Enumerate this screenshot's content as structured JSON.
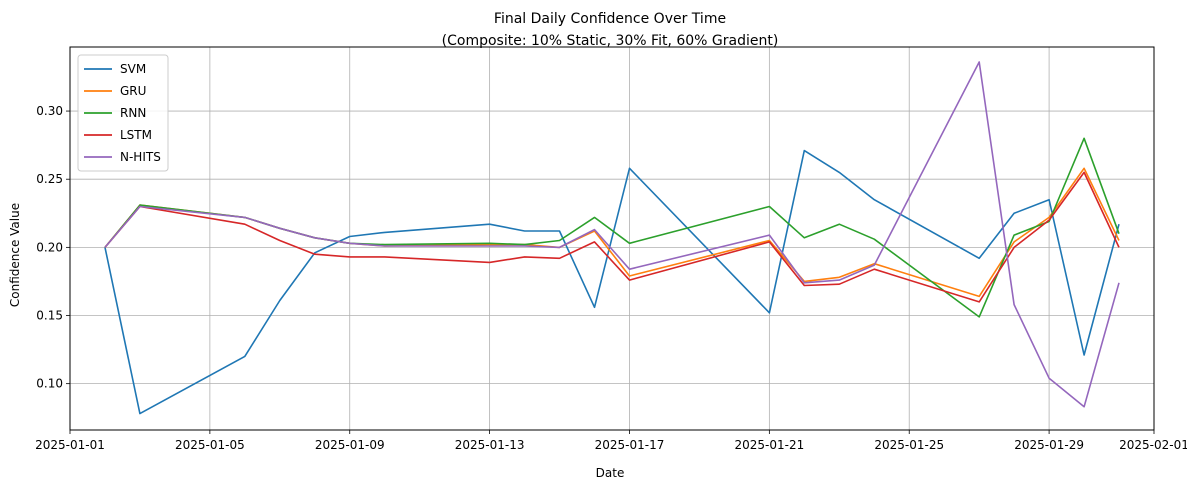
{
  "chart_data": {
    "type": "line",
    "title": "Final Daily Confidence Over Time",
    "subtitle": "(Composite: 10% Static, 30% Fit, 60% Gradient)",
    "xlabel": "Date",
    "ylabel": "Confidence Value",
    "x_ticks": [
      "2025-01-01",
      "2025-01-05",
      "2025-01-09",
      "2025-01-13",
      "2025-01-17",
      "2025-01-21",
      "2025-01-25",
      "2025-01-29",
      "2025-02-01"
    ],
    "y_ticks": [
      "0.10",
      "0.15",
      "0.20",
      "0.25",
      "0.30"
    ],
    "xlim": [
      "2025-01-01",
      "2025-02-01"
    ],
    "ylim": [
      0.066,
      0.347
    ],
    "grid": true,
    "legend_position": "top-left",
    "x": [
      "2025-01-02",
      "2025-01-03",
      "2025-01-06",
      "2025-01-07",
      "2025-01-08",
      "2025-01-09",
      "2025-01-10",
      "2025-01-13",
      "2025-01-14",
      "2025-01-15",
      "2025-01-16",
      "2025-01-17",
      "2025-01-21",
      "2025-01-22",
      "2025-01-23",
      "2025-01-24",
      "2025-01-27",
      "2025-01-28",
      "2025-01-29",
      "2025-01-30",
      "2025-01-31"
    ],
    "series": [
      {
        "name": "SVM",
        "color": "#1f77b4",
        "values": [
          0.2,
          0.078,
          0.12,
          0.161,
          0.196,
          0.208,
          0.211,
          0.217,
          0.212,
          0.212,
          0.156,
          0.258,
          0.152,
          0.271,
          0.255,
          0.235,
          0.192,
          0.225,
          0.235,
          0.121,
          0.217
        ]
      },
      {
        "name": "GRU",
        "color": "#ff7f0e",
        "values": [
          0.2,
          0.231,
          0.222,
          0.214,
          0.207,
          0.203,
          0.201,
          0.202,
          0.202,
          0.2,
          0.212,
          0.179,
          0.205,
          0.175,
          0.178,
          0.188,
          0.164,
          0.204,
          0.222,
          0.258,
          0.205
        ]
      },
      {
        "name": "RNN",
        "color": "#2ca02c",
        "values": [
          0.2,
          0.231,
          0.222,
          0.214,
          0.207,
          0.203,
          0.202,
          0.203,
          0.202,
          0.205,
          0.222,
          0.203,
          0.23,
          0.207,
          0.217,
          0.206,
          0.149,
          0.209,
          0.219,
          0.28,
          0.21
        ]
      },
      {
        "name": "LSTM",
        "color": "#d62728",
        "values": [
          0.2,
          0.23,
          0.217,
          0.205,
          0.195,
          0.193,
          0.193,
          0.189,
          0.193,
          0.192,
          0.204,
          0.176,
          0.204,
          0.172,
          0.173,
          0.184,
          0.16,
          0.2,
          0.22,
          0.255,
          0.2
        ]
      },
      {
        "name": "N-HITS",
        "color": "#9467bd",
        "values": [
          0.2,
          0.23,
          0.222,
          0.214,
          0.207,
          0.203,
          0.201,
          0.201,
          0.201,
          0.2,
          0.213,
          0.184,
          0.209,
          0.174,
          0.176,
          0.187,
          0.336,
          0.158,
          0.104,
          0.083,
          0.174
        ]
      }
    ]
  }
}
